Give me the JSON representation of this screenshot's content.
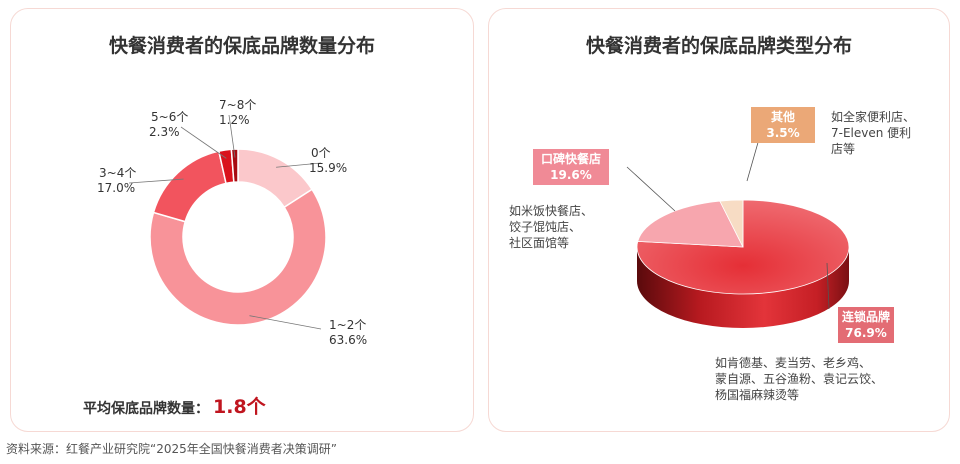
{
  "source": "资料来源：红餐产业研究院“2025年全国快餐消费者决策调研”",
  "chart_data": [
    {
      "type": "pie",
      "subtype": "donut",
      "title": "快餐消费者的保底品牌数量分布",
      "categories": [
        "0个",
        "1~2个",
        "3~4个",
        "5~6个",
        "7~8个"
      ],
      "values": [
        15.9,
        63.6,
        17.0,
        2.3,
        1.2
      ],
      "labels": [
        "15.9%",
        "63.6%",
        "17.0%",
        "2.3%",
        "1.2%"
      ],
      "colors": [
        "#fbc8cb",
        "#f89399",
        "#f2545e",
        "#d9131c",
        "#a80c12"
      ],
      "annotation_label": "平均保底品牌数量：",
      "annotation_value": "1.8个"
    },
    {
      "type": "pie",
      "subtype": "3d",
      "title": "快餐消费者的保底品牌类型分布",
      "categories": [
        "连锁品牌",
        "口碑快餐店",
        "其他"
      ],
      "values": [
        76.9,
        19.6,
        3.5
      ],
      "labels": [
        "76.9%",
        "19.6%",
        "3.5%"
      ],
      "colors": [
        "#e2373d",
        "#f7a6ae",
        "#f7dcc4"
      ],
      "tag_colors": [
        "#e36c74",
        "#f08a96",
        "#eba877"
      ],
      "descriptions": [
        "如肯德基、麦当劳、老乡鸡、\n蒙自源、五谷渔粉、袁记云饺、\n杨国福麻辣烫等",
        "如米饭快餐店、\n饺子馄饨店、\n社区面馆等",
        "如全家便利店、\n7-Eleven 便利\n店等"
      ]
    }
  ]
}
